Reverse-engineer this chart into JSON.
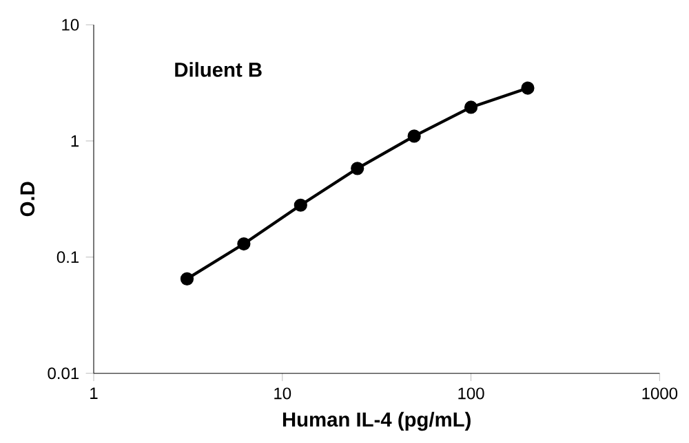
{
  "chart_data": {
    "type": "line",
    "title": "Diluent B",
    "xlabel": "Human IL-4 (pg/mL)",
    "ylabel": "O.D",
    "log": "xy",
    "x": [
      3.125,
      6.25,
      12.5,
      25,
      50,
      100,
      200
    ],
    "series": [
      {
        "color": "#000000",
        "values": [
          0.065,
          0.13,
          0.28,
          0.58,
          1.1,
          1.95,
          2.85
        ]
      }
    ],
    "xlim": [
      1,
      1000
    ],
    "ylim": [
      0.01,
      10
    ],
    "xticks": [
      1,
      10,
      100,
      1000
    ],
    "yticks": [
      0.01,
      0.1,
      1,
      10
    ],
    "marker": "circle",
    "line_style": "solid",
    "grid": false
  }
}
